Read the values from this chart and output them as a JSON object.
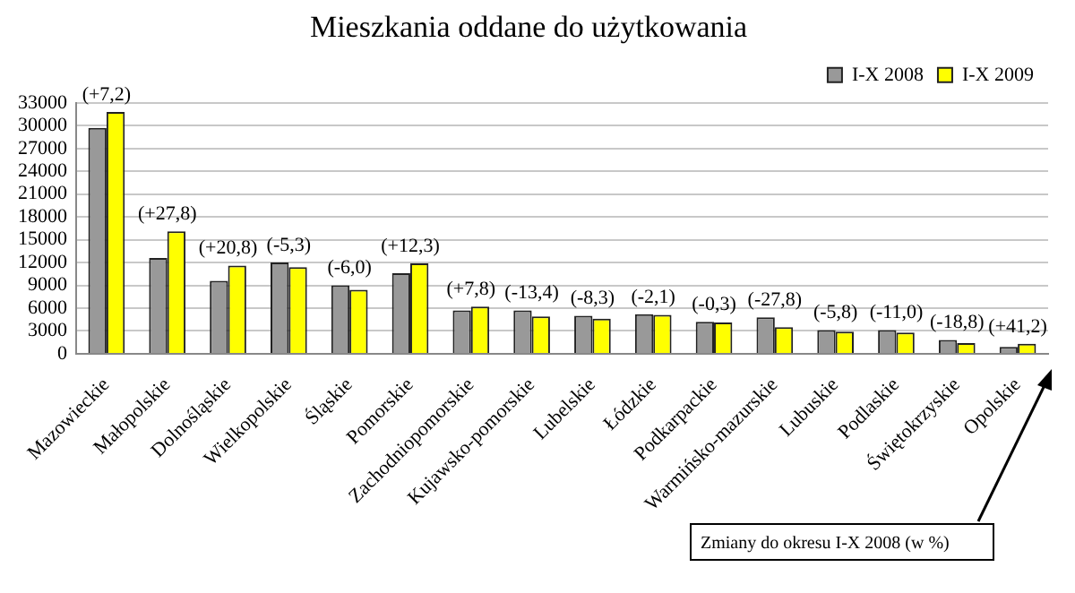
{
  "chart_data": {
    "type": "bar",
    "title": "Mieszkania oddane do użytkowania",
    "categories": [
      "Mazowieckie",
      "Małopolskie",
      "Dolnośląskie",
      "Wielkopolskie",
      "Śląskie",
      "Pomorskie",
      "Zachodniopomorskie",
      "Kujawsko-pomorskie",
      "Lubelskie",
      "Łódzkie",
      "Podkarpackie",
      "Warmińsko-mazurskie",
      "Lubuskie",
      "Podlaskie",
      "Świętokrzyskie",
      "Opolskie"
    ],
    "series": [
      {
        "name": "I-X 2008",
        "color": "#999999",
        "values": [
          29700,
          12600,
          9600,
          12000,
          9000,
          10600,
          5700,
          5700,
          5000,
          5200,
          4200,
          4800,
          3100,
          3100,
          1800,
          900
        ]
      },
      {
        "name": "I-X 2009",
        "color": "#ffff00",
        "values": [
          31800,
          16100,
          11600,
          11400,
          8400,
          11900,
          6200,
          4900,
          4600,
          5100,
          4100,
          3500,
          2900,
          2800,
          1400,
          1300
        ]
      }
    ],
    "ylim": [
      0,
      33000
    ],
    "yticks": [
      0,
      3000,
      6000,
      9000,
      12000,
      15000,
      18000,
      21000,
      24000,
      27000,
      30000,
      33000
    ],
    "grid": "y",
    "legend": "top",
    "annotations": [
      {
        "text": "(+7,2)",
        "x": "Mazowieckie",
        "y": 31800
      },
      {
        "text": "(+27,8)",
        "x": "Małopolskie",
        "y": 16100
      },
      {
        "text": "(+20,8)",
        "x": "Dolnośląskie",
        "y": 11600
      },
      {
        "text": "(-5,3)",
        "x": "Wielkopolskie",
        "y": 12000
      },
      {
        "text": "(-6,0)",
        "x": "Śląskie",
        "y": 9000
      },
      {
        "text": "(+12,3)",
        "x": "Pomorskie",
        "y": 11900
      },
      {
        "text": "(+7,8)",
        "x": "Zachodniopomorskie",
        "y": 6200
      },
      {
        "text": "(-13,4)",
        "x": "Kujawsko-pomorskie",
        "y": 5700
      },
      {
        "text": "(-8,3)",
        "x": "Lubelskie",
        "y": 5000
      },
      {
        "text": "(-2,1)",
        "x": "Łódzkie",
        "y": 5200
      },
      {
        "text": "(-0,3)",
        "x": "Podkarpackie",
        "y": 4200
      },
      {
        "text": "(-27,8)",
        "x": "Warmińsko-mazurskie",
        "y": 4800
      },
      {
        "text": "(-5,8)",
        "x": "Lubuskie",
        "y": 3100
      },
      {
        "text": "(-11,0)",
        "x": "Podlaskie",
        "y": 3100
      },
      {
        "text": "(-18,8)",
        "x": "Świętokrzyskie",
        "y": 1800
      },
      {
        "text": "(+41,2)",
        "x": "Opolskie",
        "y": 1300
      },
      "Zmiany do okresu I-X 2008 (w %)"
    ]
  }
}
